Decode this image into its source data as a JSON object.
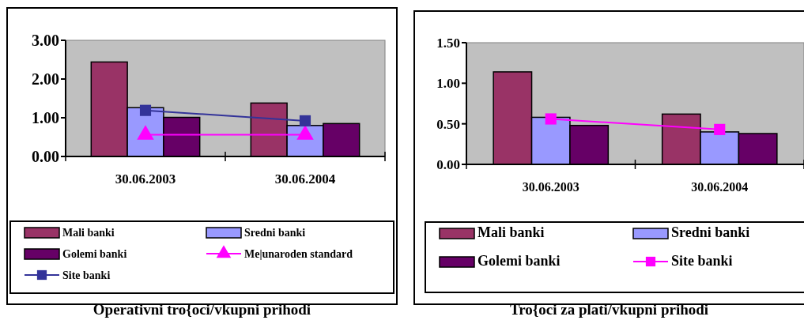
{
  "chart_data": [
    {
      "type": "bar",
      "title": "Operativni tro{oci/vkupni prihodi",
      "categories": [
        "30.06.2003",
        "30.06.2004"
      ],
      "ylim": [
        0,
        3
      ],
      "yticks": [
        {
          "value": 0,
          "label": "0.00"
        },
        {
          "value": 1,
          "label": "1.00"
        },
        {
          "value": 2,
          "label": "2.00"
        },
        {
          "value": 3,
          "label": "3.00"
        }
      ],
      "legend": "bottom",
      "series": [
        {
          "name": "Mali banki",
          "color": "#993366",
          "values": [
            2.44,
            1.38
          ]
        },
        {
          "name": "Sredni banki",
          "color": "#9999ff",
          "values": [
            1.26,
            0.8
          ]
        },
        {
          "name": "Golemi banki",
          "color": "#660066",
          "values": [
            1.01,
            0.85
          ]
        },
        {
          "name": "Me|unaroden standard",
          "type": "line",
          "marker": "triangle",
          "color": "#ff00ff",
          "values": [
            0.56,
            0.56
          ]
        },
        {
          "name": "Site banki",
          "type": "line",
          "marker": "square",
          "color": "#333399",
          "values": [
            1.19,
            0.92
          ]
        }
      ]
    },
    {
      "type": "bar",
      "title": "Tro{oci za plati/vkupni prihodi",
      "categories": [
        "30.06.2003",
        "30.06.2004"
      ],
      "ylim": [
        0,
        1.5
      ],
      "yticks": [
        {
          "value": 0,
          "label": "0.00"
        },
        {
          "value": 0.5,
          "label": "0.50"
        },
        {
          "value": 1,
          "label": "1.00"
        },
        {
          "value": 1.5,
          "label": "1.50"
        }
      ],
      "legend": "bottom",
      "series": [
        {
          "name": "Mali banki",
          "color": "#993366",
          "values": [
            1.14,
            0.62
          ]
        },
        {
          "name": "Sredni banki",
          "color": "#9999ff",
          "values": [
            0.58,
            0.4
          ]
        },
        {
          "name": "Golemi banki",
          "color": "#660066",
          "values": [
            0.48,
            0.38
          ]
        },
        {
          "name": "Site banki",
          "type": "line",
          "marker": "square",
          "color": "#ff00ff",
          "values": [
            0.56,
            0.43
          ]
        }
      ]
    }
  ]
}
